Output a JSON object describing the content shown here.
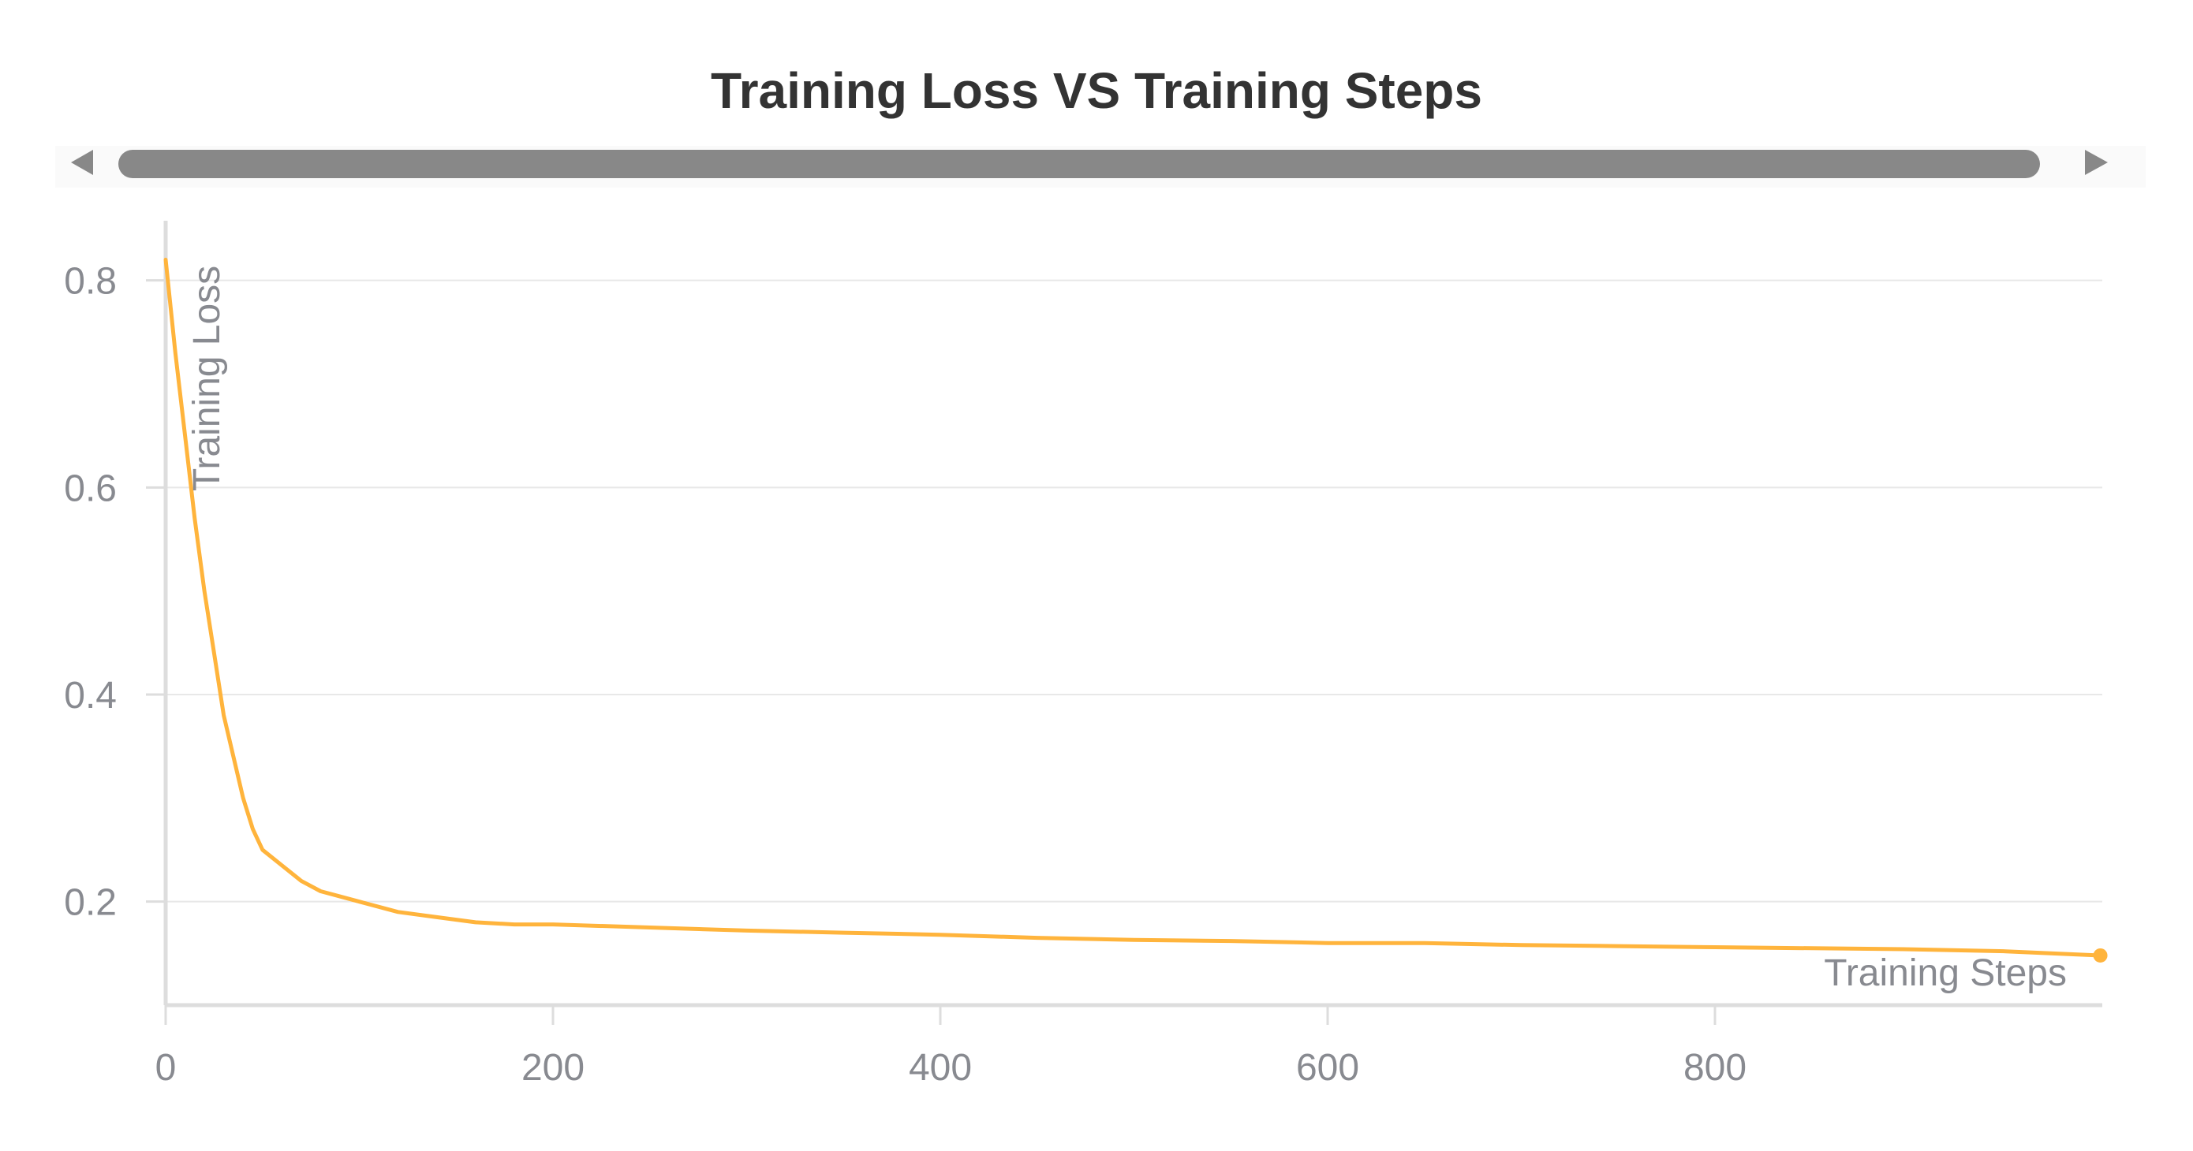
{
  "chart_data": {
    "type": "line",
    "title": "Training Loss VS Training Steps",
    "xlabel": "Training Steps",
    "ylabel": "Training Loss",
    "xlim": [
      0,
      1000
    ],
    "ylim": [
      0.1,
      0.85
    ],
    "x_ticks": [
      0,
      200,
      400,
      600,
      800
    ],
    "x_tick_labels": [
      "0",
      "200",
      "400",
      "600",
      "800"
    ],
    "y_ticks": [
      0.2,
      0.4,
      0.6,
      0.8
    ],
    "y_tick_labels": [
      "0.2",
      "0.4",
      "0.6",
      "0.8"
    ],
    "grid": true,
    "legend": "none",
    "color": "#ffb43c",
    "series": [
      {
        "x": [
          0,
          5,
          10,
          15,
          20,
          25,
          30,
          35,
          40,
          45,
          50,
          60,
          70,
          80,
          90,
          100,
          120,
          140,
          160,
          180,
          200,
          250,
          300,
          350,
          400,
          450,
          500,
          550,
          600,
          650,
          700,
          750,
          800,
          850,
          900,
          950,
          999
        ],
        "y": [
          0.82,
          0.73,
          0.65,
          0.57,
          0.5,
          0.44,
          0.38,
          0.34,
          0.3,
          0.27,
          0.25,
          0.235,
          0.22,
          0.21,
          0.205,
          0.2,
          0.19,
          0.185,
          0.18,
          0.178,
          0.178,
          0.175,
          0.172,
          0.17,
          0.168,
          0.165,
          0.163,
          0.162,
          0.16,
          0.16,
          0.158,
          0.157,
          0.156,
          0.155,
          0.154,
          0.152,
          0.148
        ]
      }
    ]
  },
  "scrollbar": {
    "left_icon": "triangle-left-icon",
    "right_icon": "triangle-right-icon"
  }
}
